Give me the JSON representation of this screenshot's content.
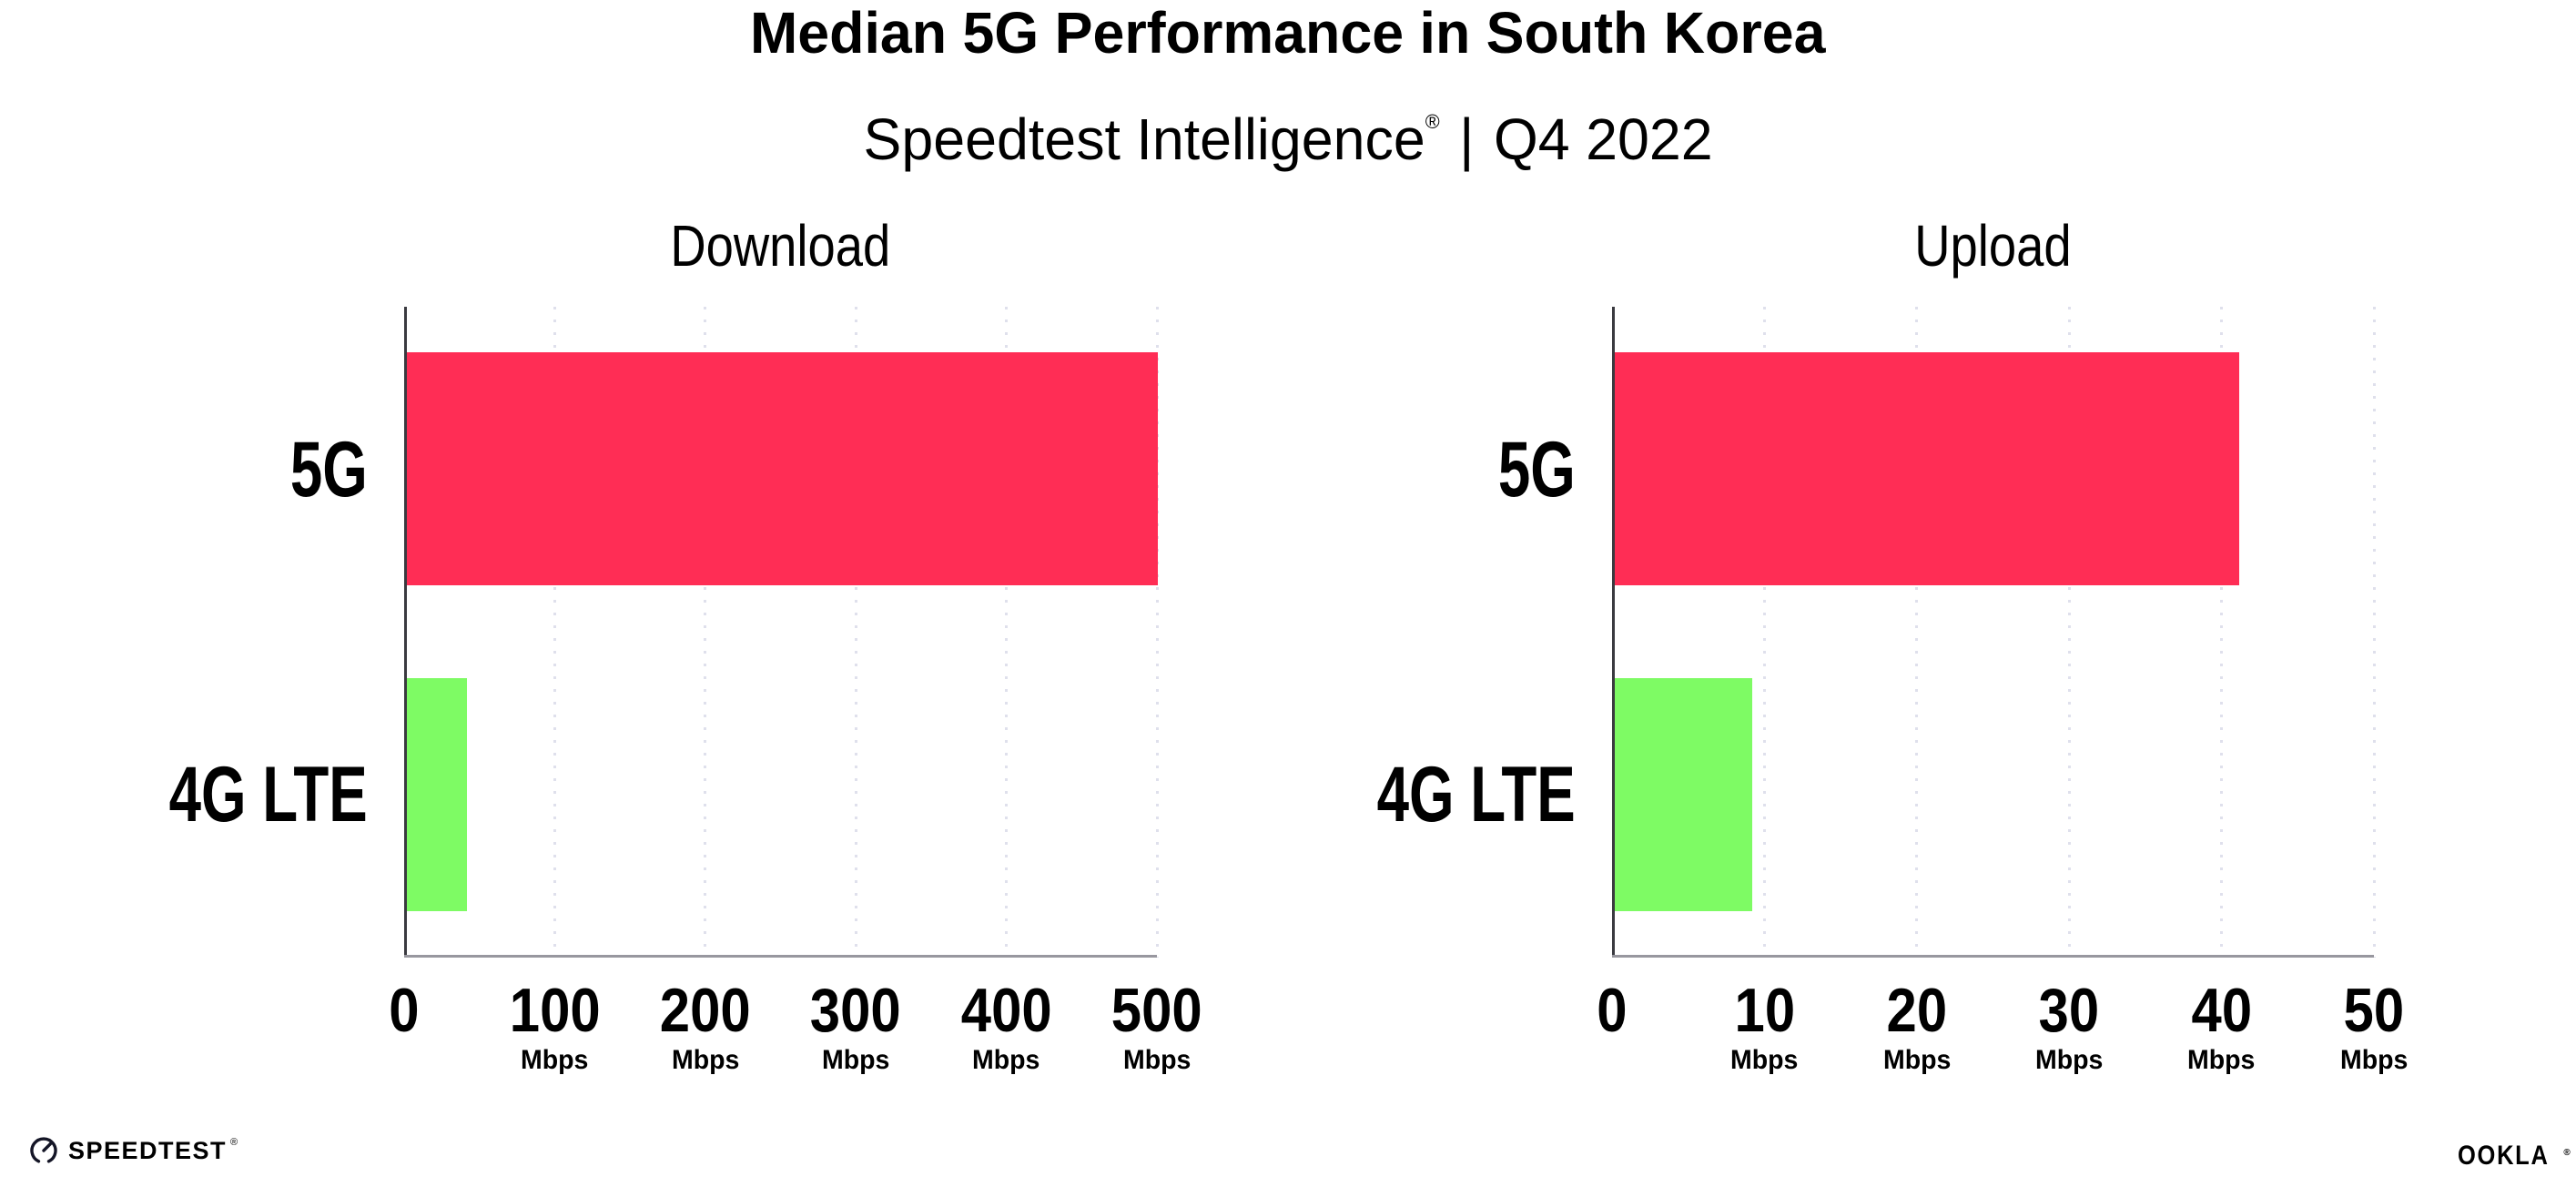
{
  "header": {
    "title": "Median 5G Performance in South Korea",
    "subtitle_brand": "Speedtest Intelligence",
    "subtitle_mark": "®",
    "subtitle_separator": "|",
    "subtitle_period": "Q4 2022"
  },
  "footer": {
    "speedtest_label": "SPEEDTEST",
    "speedtest_mark": "®",
    "ookla_label": "OOKLA",
    "ookla_mark": "®"
  },
  "colors": {
    "background": "#ffffff",
    "text": "#000000",
    "bar_5g": "#ff2d55",
    "bar_4g_lte": "#7efb64",
    "gridline": "#dfe0ec",
    "axis_x": "#98979f",
    "axis_y": "#3a3a40"
  },
  "chart_data": [
    {
      "type": "bar",
      "orientation": "horizontal",
      "title": "Download",
      "categories": [
        "5G",
        "4G LTE"
      ],
      "values": [
        499,
        40
      ],
      "value_unit": "Mbps",
      "xlim": [
        0,
        500
      ],
      "xticks": [
        0,
        100,
        200,
        300,
        400,
        500
      ],
      "xtick_unit_label": "Mbps",
      "bar_colors": [
        "#ff2d55",
        "#7efb64"
      ],
      "grid": "vertical-dotted",
      "legend": "none"
    },
    {
      "type": "bar",
      "orientation": "horizontal",
      "title": "Upload",
      "categories": [
        "5G",
        "4G LTE"
      ],
      "values": [
        41,
        9
      ],
      "value_unit": "Mbps",
      "xlim": [
        0,
        50
      ],
      "xticks": [
        0,
        10,
        20,
        30,
        40,
        50
      ],
      "xtick_unit_label": "Mbps",
      "bar_colors": [
        "#ff2d55",
        "#7efb64"
      ],
      "grid": "vertical-dotted",
      "legend": "none"
    }
  ]
}
